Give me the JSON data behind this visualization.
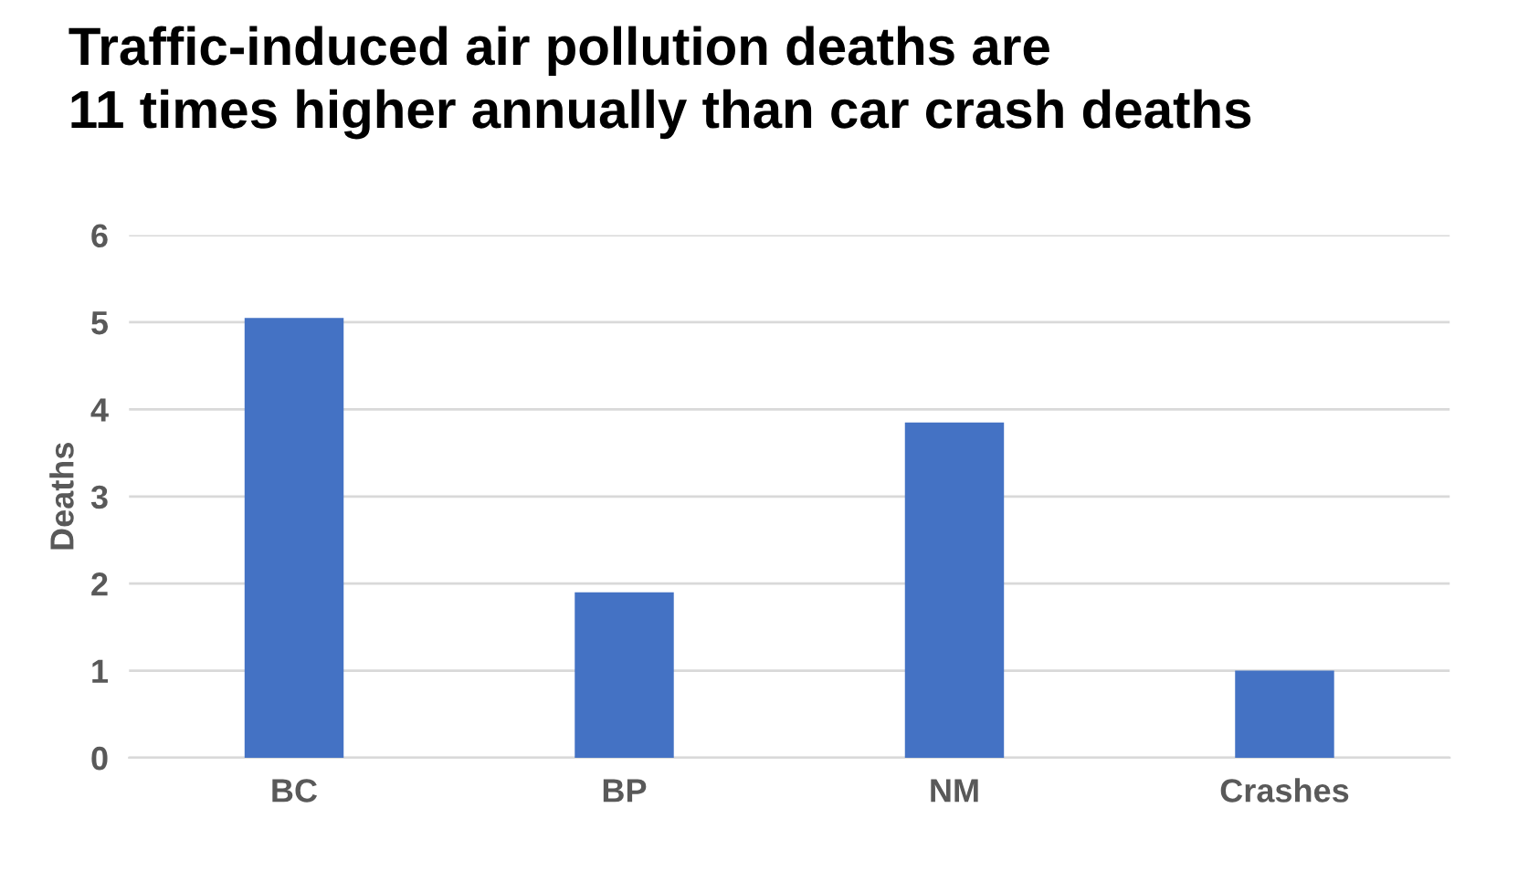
{
  "chart_data": {
    "type": "bar",
    "title": "Traffic-induced air pollution deaths are\n11 times higher annually than car crash deaths",
    "ylabel": "Deaths",
    "categories": [
      "BC",
      "BP",
      "NM",
      "Crashes"
    ],
    "values": [
      5.05,
      1.9,
      3.85,
      1.0
    ],
    "color": "#4472c4",
    "ylim": [
      0,
      6
    ],
    "yticks": [
      0,
      1,
      2,
      3,
      4,
      5,
      6
    ],
    "grid": "y"
  }
}
